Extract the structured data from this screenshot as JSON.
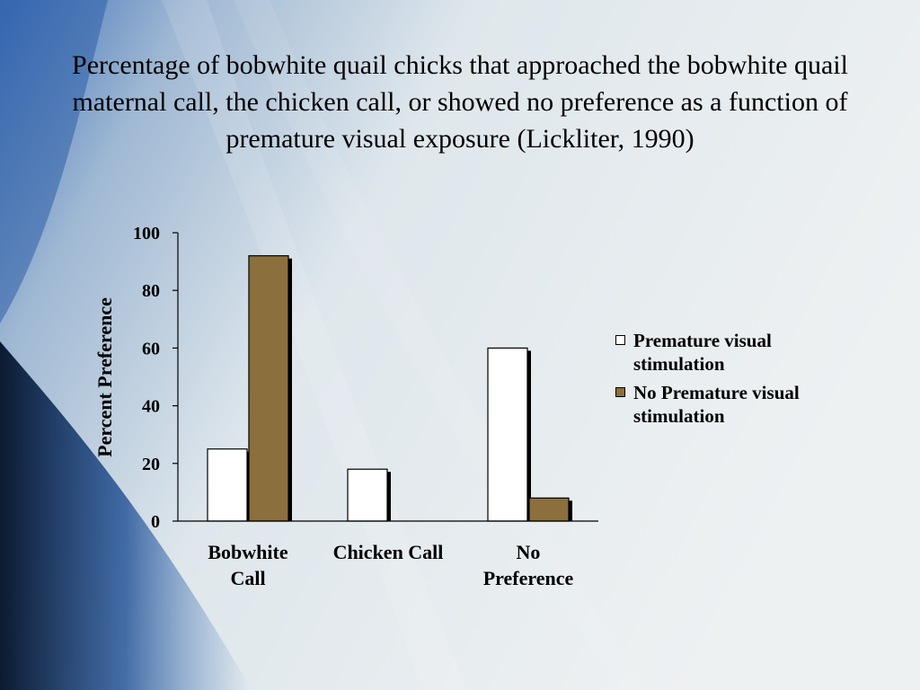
{
  "slide": {
    "title": "Percentage of bobwhite quail chicks that approached the bobwhite quail maternal call, the chicken call, or showed no preference as a function of premature visual exposure (Lickliter, 1990)"
  },
  "colors": {
    "series_1": "#ffffff",
    "series_2": "#8b6f3c"
  },
  "chart_data": {
    "type": "bar",
    "title": "",
    "xlabel": "",
    "ylabel": "Percent Preference",
    "ylim": [
      0,
      100
    ],
    "yticks": [
      "0",
      "20",
      "40",
      "60",
      "80",
      "100"
    ],
    "categories": [
      [
        "Bobwhite",
        "Call"
      ],
      [
        "Chicken Call"
      ],
      [
        "No",
        "Preference"
      ]
    ],
    "series": [
      {
        "name": "Premature visual stimulation",
        "legend_lines": [
          "Premature visual",
          "stimulation"
        ],
        "values": [
          25,
          18,
          60
        ]
      },
      {
        "name": "No Premature visual stimulation",
        "legend_lines": [
          "No Premature visual",
          "stimulation"
        ],
        "values": [
          92,
          0,
          8
        ]
      }
    ],
    "legend_position": "right",
    "grid": false
  }
}
